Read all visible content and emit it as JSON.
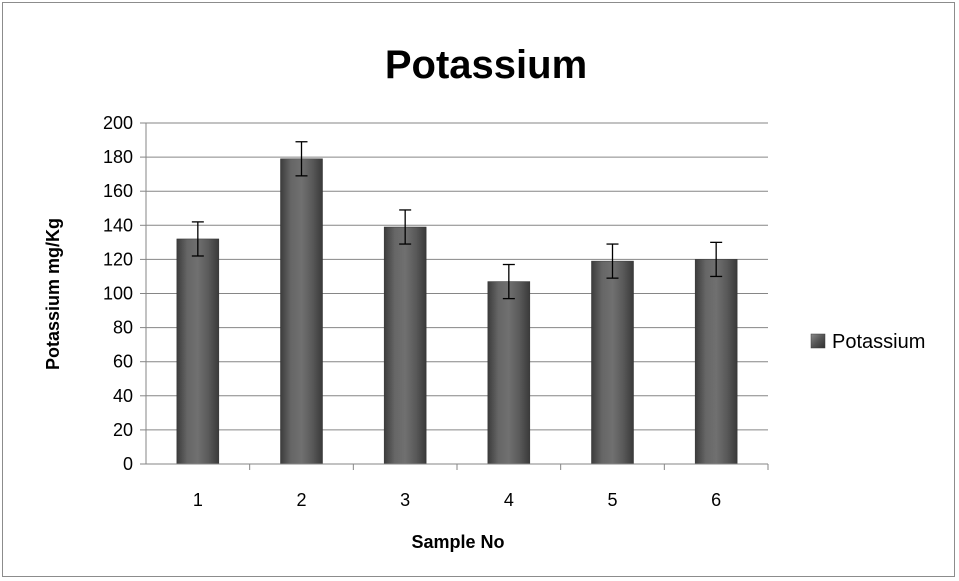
{
  "chart_data": {
    "type": "bar",
    "title": "Potassium",
    "xlabel": "Sample No",
    "ylabel": "Potassium mg/Kg",
    "categories": [
      "1",
      "2",
      "3",
      "4",
      "5",
      "6"
    ],
    "series": [
      {
        "name": "Potassium",
        "values": [
          132,
          179,
          139,
          107,
          119,
          120
        ],
        "error": [
          10,
          10,
          10,
          10,
          10,
          10
        ]
      }
    ],
    "ylim": [
      0,
      200
    ],
    "yticks": [
      0,
      20,
      40,
      60,
      80,
      100,
      120,
      140,
      160,
      180,
      200
    ],
    "grid": true,
    "legend": "right",
    "colors": {
      "bar": "#555555",
      "bar_light": "#7a7a7a",
      "bar_dark": "#3a3a3a",
      "grid": "#868686",
      "axis": "#868686"
    }
  }
}
